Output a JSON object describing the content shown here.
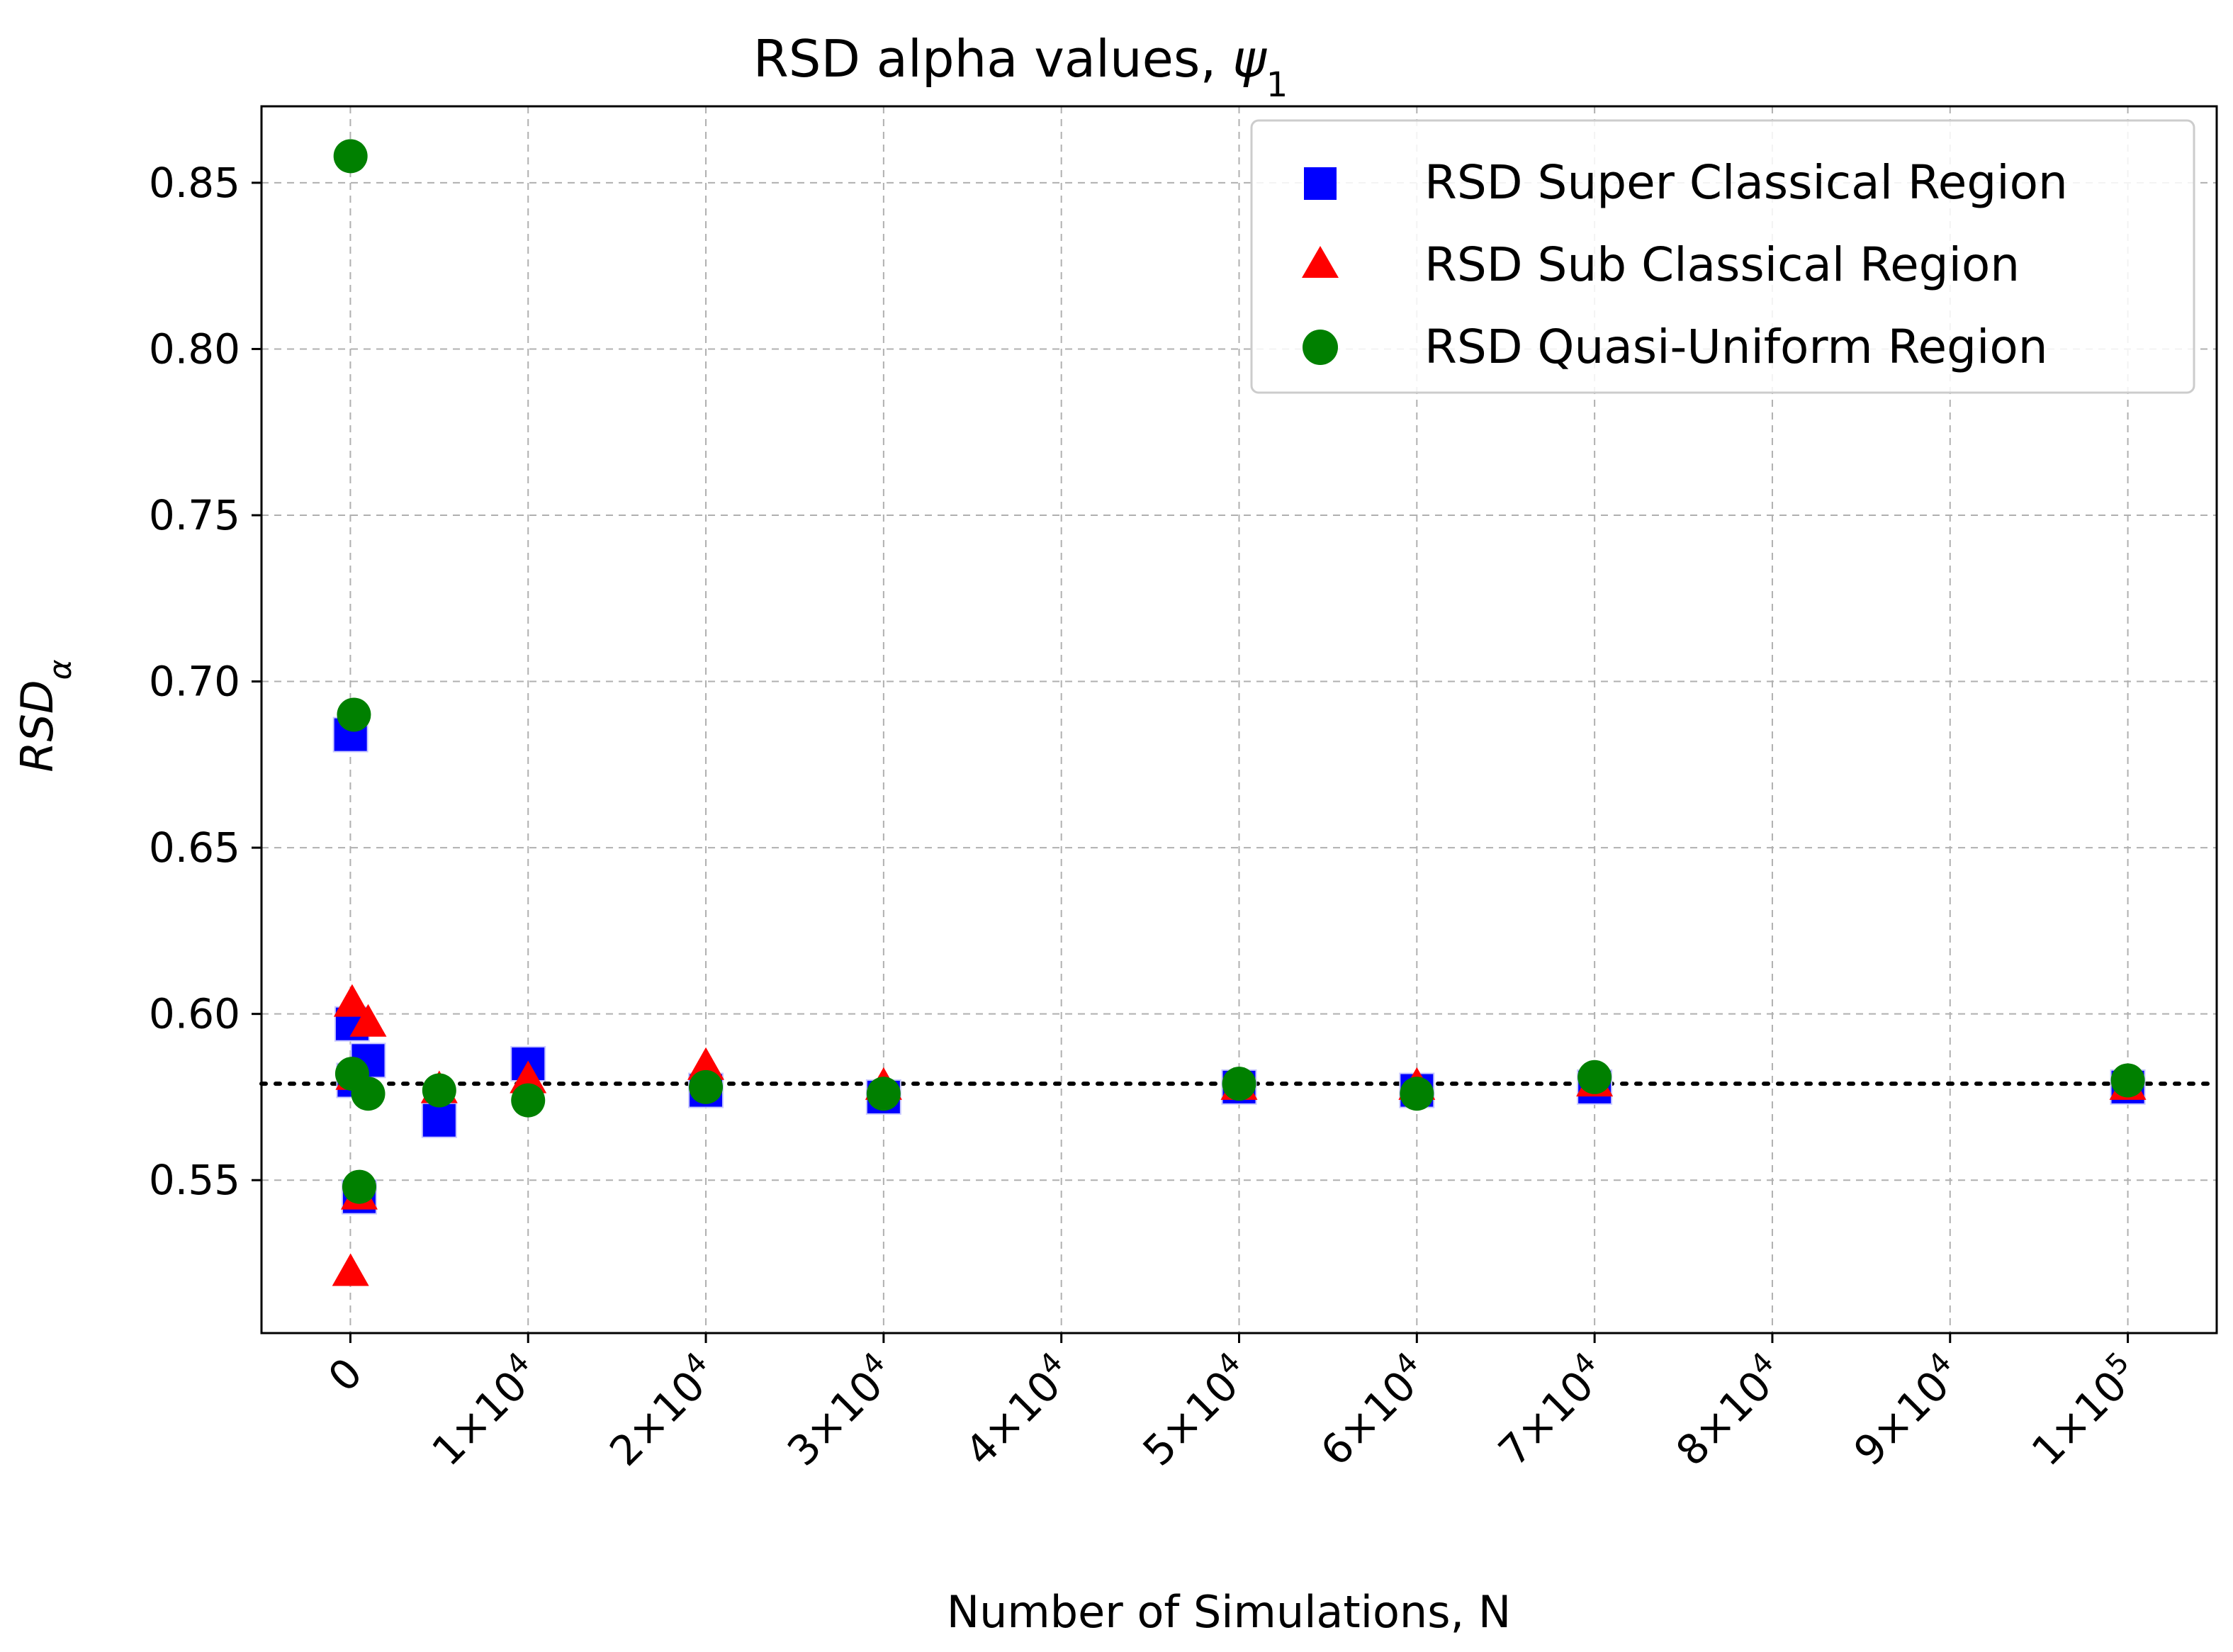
{
  "chart_data": {
    "type": "scatter",
    "title_prefix": "RSD alpha values, ",
    "title_symbol": "ψ",
    "title_subscript": "1",
    "xlabel": "Number of Simulations, N",
    "ylabel_main": "RSD",
    "ylabel_subscript": "α",
    "xlim": [
      -5000,
      105000
    ],
    "ylim": [
      0.504,
      0.873
    ],
    "x_ticks": [
      {
        "value": 0,
        "base": "0",
        "exp": ""
      },
      {
        "value": 10000,
        "base": "1×10",
        "exp": "4"
      },
      {
        "value": 20000,
        "base": "2×10",
        "exp": "4"
      },
      {
        "value": 30000,
        "base": "3×10",
        "exp": "4"
      },
      {
        "value": 40000,
        "base": "4×10",
        "exp": "4"
      },
      {
        "value": 50000,
        "base": "5×10",
        "exp": "4"
      },
      {
        "value": 60000,
        "base": "6×10",
        "exp": "4"
      },
      {
        "value": 70000,
        "base": "7×10",
        "exp": "4"
      },
      {
        "value": 80000,
        "base": "8×10",
        "exp": "4"
      },
      {
        "value": 90000,
        "base": "9×10",
        "exp": "4"
      },
      {
        "value": 100000,
        "base": "1×10",
        "exp": "5"
      }
    ],
    "y_ticks": [
      {
        "value": 0.55,
        "label": "0.55"
      },
      {
        "value": 0.6,
        "label": "0.60"
      },
      {
        "value": 0.65,
        "label": "0.65"
      },
      {
        "value": 0.7,
        "label": "0.70"
      },
      {
        "value": 0.75,
        "label": "0.75"
      },
      {
        "value": 0.8,
        "label": "0.80"
      },
      {
        "value": 0.85,
        "label": "0.85"
      }
    ],
    "grid": true,
    "reference_line": {
      "y": 0.579,
      "style": "dotted",
      "color": "#000000"
    },
    "legend_position": "top-right",
    "series": [
      {
        "name": "RSD Super Classical Region",
        "marker": "square",
        "color": "#0000ff",
        "points": [
          {
            "x": 10,
            "y": 0.684
          },
          {
            "x": 100,
            "y": 0.597
          },
          {
            "x": 200,
            "y": 0.58
          },
          {
            "x": 500,
            "y": 0.545
          },
          {
            "x": 1000,
            "y": 0.586
          },
          {
            "x": 5000,
            "y": 0.568
          },
          {
            "x": 10000,
            "y": 0.585
          },
          {
            "x": 20000,
            "y": 0.577
          },
          {
            "x": 30000,
            "y": 0.575
          },
          {
            "x": 50000,
            "y": 0.578
          },
          {
            "x": 60000,
            "y": 0.577
          },
          {
            "x": 70000,
            "y": 0.578
          },
          {
            "x": 100000,
            "y": 0.578
          }
        ]
      },
      {
        "name": "RSD Sub Classical Region",
        "marker": "triangle",
        "color": "#ff0000",
        "points": [
          {
            "x": 10,
            "y": 0.522
          },
          {
            "x": 100,
            "y": 0.603
          },
          {
            "x": 200,
            "y": 0.581
          },
          {
            "x": 500,
            "y": 0.545
          },
          {
            "x": 1000,
            "y": 0.597
          },
          {
            "x": 5000,
            "y": 0.577
          },
          {
            "x": 10000,
            "y": 0.58
          },
          {
            "x": 20000,
            "y": 0.584
          },
          {
            "x": 30000,
            "y": 0.578
          },
          {
            "x": 50000,
            "y": 0.578
          },
          {
            "x": 60000,
            "y": 0.578
          },
          {
            "x": 70000,
            "y": 0.579
          },
          {
            "x": 100000,
            "y": 0.578
          }
        ]
      },
      {
        "name": "RSD Quasi-Uniform Region",
        "marker": "circle",
        "color": "#008000",
        "points": [
          {
            "x": 10,
            "y": 0.858
          },
          {
            "x": 100,
            "y": 0.582
          },
          {
            "x": 200,
            "y": 0.69
          },
          {
            "x": 500,
            "y": 0.548
          },
          {
            "x": 1000,
            "y": 0.576
          },
          {
            "x": 5000,
            "y": 0.577
          },
          {
            "x": 10000,
            "y": 0.574
          },
          {
            "x": 20000,
            "y": 0.578
          },
          {
            "x": 30000,
            "y": 0.576
          },
          {
            "x": 50000,
            "y": 0.579
          },
          {
            "x": 60000,
            "y": 0.576
          },
          {
            "x": 70000,
            "y": 0.581
          },
          {
            "x": 100000,
            "y": 0.58
          }
        ]
      }
    ]
  }
}
